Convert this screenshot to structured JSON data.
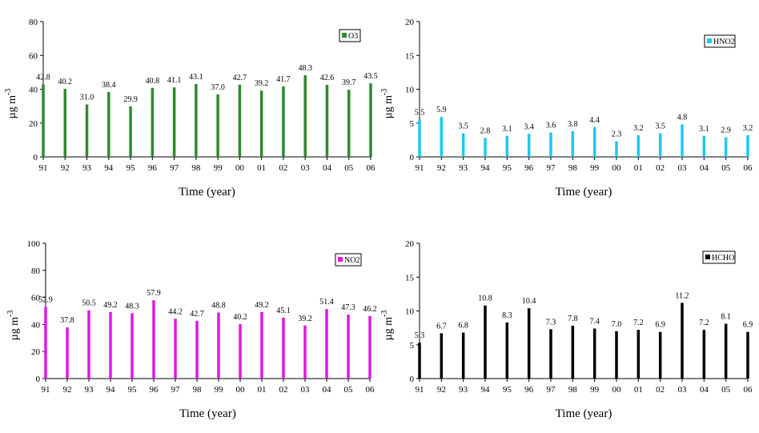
{
  "colors": {
    "O3": "#2e8b2e",
    "HNO2": "#1ec8f0",
    "NO2": "#e018e0",
    "HCHO": "#000000"
  },
  "chart_data": [
    {
      "type": "bar",
      "legend": "O3",
      "legend_position": "top-right",
      "xlabel": "Time (year)",
      "ylabel": "µg m",
      "ylabel_superscript": "-3",
      "ylim": [
        0,
        80
      ],
      "yticks": [
        "0",
        "20",
        "40",
        "60",
        "80"
      ],
      "categories": [
        "91",
        "92",
        "93",
        "94",
        "95",
        "96",
        "97",
        "98",
        "99",
        "00",
        "01",
        "02",
        "03",
        "04",
        "05",
        "06"
      ],
      "values": [
        42.8,
        40.2,
        31.0,
        38.4,
        29.9,
        40.8,
        41.1,
        43.1,
        37.0,
        42.7,
        39.2,
        41.7,
        48.3,
        42.6,
        39.7,
        43.5
      ],
      "value_labels": [
        "42.8",
        "40.2",
        "31.0",
        "38.4",
        "29.9",
        "40.8",
        "41.1",
        "43.1",
        "37.0",
        "42.7",
        "39.2",
        "41.7",
        "48.3",
        "42.6",
        "39.7",
        "43.5"
      ]
    },
    {
      "type": "bar",
      "legend": "HNO2",
      "legend_position": "top-right",
      "xlabel": "Time (year)",
      "ylabel": "µg m",
      "ylabel_superscript": "-3",
      "ylim": [
        0,
        20
      ],
      "yticks": [
        "0",
        "5",
        "10",
        "15",
        "20"
      ],
      "categories": [
        "91",
        "92",
        "93",
        "94",
        "95",
        "96",
        "97",
        "98",
        "99",
        "00",
        "01",
        "02",
        "03",
        "04",
        "05",
        "06"
      ],
      "values": [
        5.5,
        5.9,
        3.5,
        2.8,
        3.1,
        3.4,
        3.6,
        3.8,
        4.4,
        2.3,
        3.2,
        3.5,
        4.8,
        3.1,
        2.9,
        3.2
      ],
      "value_labels": [
        "5.5",
        "5.9",
        "3.5",
        "2.8",
        "3.1",
        "3.4",
        "3.6",
        "3.8",
        "4.4",
        "2.3",
        "3.2",
        "3.5",
        "4.8",
        "3.1",
        "2.9",
        "3.2"
      ]
    },
    {
      "type": "bar",
      "legend": "NO2",
      "legend_position": "top-right",
      "xlabel": "Time (year)",
      "ylabel": "µg m",
      "ylabel_superscript": "-3",
      "ylim": [
        0,
        100
      ],
      "yticks": [
        "0",
        "20",
        "40",
        "60",
        "80",
        "100"
      ],
      "categories": [
        "91",
        "92",
        "93",
        "94",
        "95",
        "96",
        "97",
        "98",
        "99",
        "00",
        "01",
        "02",
        "03",
        "04",
        "05",
        "06"
      ],
      "values": [
        52.9,
        37.8,
        50.5,
        49.2,
        48.3,
        57.9,
        44.2,
        42.7,
        48.8,
        40.2,
        49.2,
        45.1,
        39.2,
        51.4,
        47.3,
        46.2
      ],
      "value_labels": [
        "52.9",
        "37.8",
        "50.5",
        "49.2",
        "48.3",
        "57.9",
        "44.2",
        "42.7",
        "48.8",
        "40.2",
        "49.2",
        "45.1",
        "39.2",
        "51.4",
        "47.3",
        "46.2"
      ]
    },
    {
      "type": "bar",
      "legend": "HCHO",
      "legend_position": "top-right",
      "xlabel": "Time (year)",
      "ylabel": "µg m",
      "ylabel_superscript": "-3",
      "ylim": [
        0,
        20
      ],
      "yticks": [
        "0",
        "5",
        "10",
        "15",
        "20"
      ],
      "categories": [
        "91",
        "92",
        "93",
        "94",
        "95",
        "96",
        "97",
        "98",
        "99",
        "00",
        "01",
        "02",
        "03",
        "04",
        "05",
        "06"
      ],
      "values": [
        5.3,
        6.7,
        6.8,
        10.8,
        8.3,
        10.4,
        7.3,
        7.8,
        7.4,
        7.0,
        7.2,
        6.9,
        11.2,
        7.2,
        8.1,
        6.9
      ],
      "value_labels": [
        "5.3",
        "6.7",
        "6.8",
        "10.8",
        "8.3",
        "10.4",
        "7.3",
        "7.8",
        "7.4",
        "7.0",
        "7.2",
        "6.9",
        "11.2",
        "7.2",
        "8.1",
        "6.9"
      ]
    }
  ]
}
